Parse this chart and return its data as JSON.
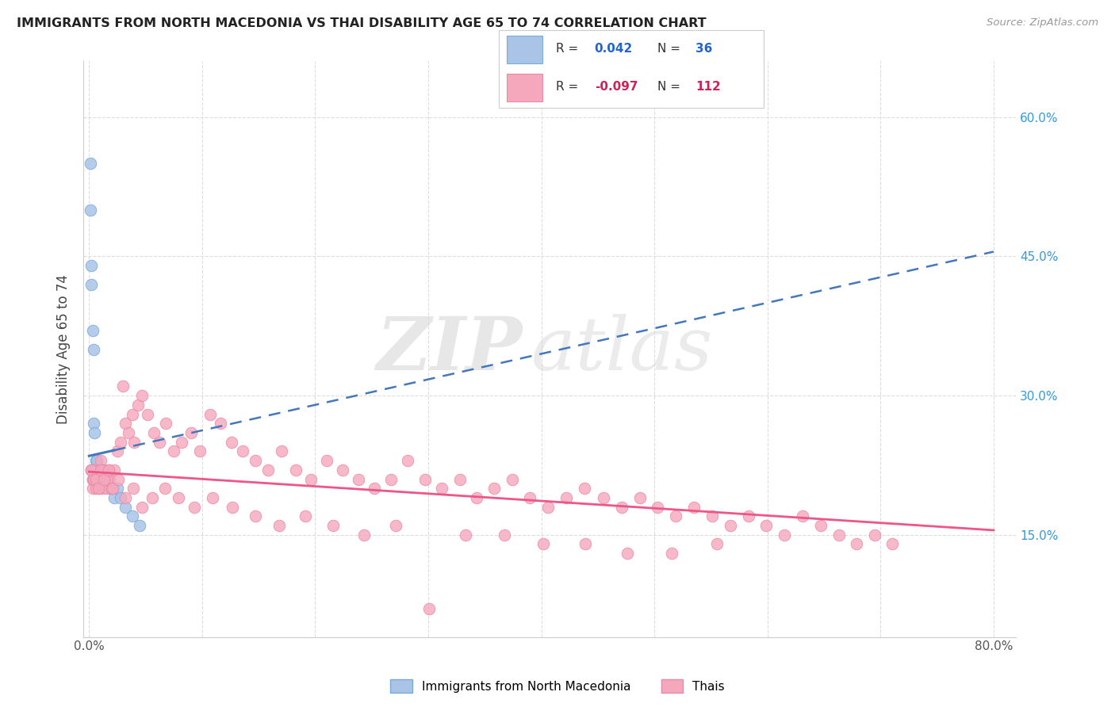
{
  "title": "IMMIGRANTS FROM NORTH MACEDONIA VS THAI DISABILITY AGE 65 TO 74 CORRELATION CHART",
  "source": "Source: ZipAtlas.com",
  "ylabel": "Disability Age 65 to 74",
  "xlim": [
    -0.005,
    0.82
  ],
  "ylim": [
    0.04,
    0.66
  ],
  "xticks": [
    0.0,
    0.1,
    0.2,
    0.3,
    0.4,
    0.5,
    0.6,
    0.7,
    0.8
  ],
  "xticklabels": [
    "0.0%",
    "",
    "",
    "",
    "",
    "",
    "",
    "",
    "80.0%"
  ],
  "yticks_right": [
    0.15,
    0.3,
    0.45,
    0.6
  ],
  "ytick_labels_right": [
    "15.0%",
    "30.0%",
    "45.0%",
    "60.0%"
  ],
  "blue_color": "#aac4e8",
  "pink_color": "#f5a8bc",
  "blue_edge_color": "#7aaad8",
  "pink_edge_color": "#e888aa",
  "blue_line_color": "#4477bb",
  "pink_line_color": "#ee5588",
  "watermark_zip": "ZIP",
  "watermark_atlas": "atlas",
  "background_color": "#ffffff",
  "grid_color": "#dddddd",
  "blue_x": [
    0.001,
    0.001,
    0.002,
    0.002,
    0.002,
    0.003,
    0.003,
    0.003,
    0.004,
    0.004,
    0.004,
    0.005,
    0.005,
    0.005,
    0.006,
    0.006,
    0.007,
    0.007,
    0.008,
    0.008,
    0.009,
    0.009,
    0.01,
    0.011,
    0.012,
    0.013,
    0.015,
    0.016,
    0.018,
    0.02,
    0.022,
    0.025,
    0.028,
    0.032,
    0.038,
    0.045
  ],
  "blue_y": [
    0.55,
    0.5,
    0.44,
    0.42,
    0.22,
    0.37,
    0.22,
    0.21,
    0.35,
    0.27,
    0.22,
    0.26,
    0.22,
    0.21,
    0.23,
    0.21,
    0.23,
    0.21,
    0.22,
    0.21,
    0.22,
    0.21,
    0.22,
    0.21,
    0.22,
    0.21,
    0.21,
    0.21,
    0.2,
    0.2,
    0.19,
    0.2,
    0.19,
    0.18,
    0.17,
    0.16
  ],
  "pink_x": [
    0.002,
    0.003,
    0.003,
    0.004,
    0.005,
    0.006,
    0.007,
    0.008,
    0.009,
    0.01,
    0.011,
    0.012,
    0.013,
    0.014,
    0.015,
    0.016,
    0.017,
    0.018,
    0.02,
    0.022,
    0.025,
    0.028,
    0.03,
    0.032,
    0.035,
    0.038,
    0.04,
    0.043,
    0.047,
    0.052,
    0.057,
    0.062,
    0.068,
    0.075,
    0.082,
    0.09,
    0.098,
    0.107,
    0.116,
    0.126,
    0.136,
    0.147,
    0.158,
    0.17,
    0.183,
    0.196,
    0.21,
    0.224,
    0.238,
    0.252,
    0.267,
    0.282,
    0.297,
    0.312,
    0.328,
    0.343,
    0.358,
    0.374,
    0.39,
    0.406,
    0.422,
    0.438,
    0.455,
    0.471,
    0.487,
    0.503,
    0.519,
    0.535,
    0.551,
    0.567,
    0.583,
    0.599,
    0.615,
    0.631,
    0.647,
    0.663,
    0.679,
    0.695,
    0.71,
    0.002,
    0.004,
    0.006,
    0.008,
    0.01,
    0.013,
    0.017,
    0.021,
    0.026,
    0.032,
    0.039,
    0.047,
    0.056,
    0.067,
    0.079,
    0.093,
    0.109,
    0.127,
    0.147,
    0.168,
    0.191,
    0.216,
    0.243,
    0.271,
    0.301,
    0.333,
    0.367,
    0.402,
    0.439,
    0.476,
    0.515,
    0.555
  ],
  "pink_y": [
    0.22,
    0.2,
    0.21,
    0.21,
    0.22,
    0.2,
    0.21,
    0.21,
    0.2,
    0.23,
    0.21,
    0.2,
    0.22,
    0.21,
    0.2,
    0.21,
    0.22,
    0.21,
    0.2,
    0.22,
    0.24,
    0.25,
    0.31,
    0.27,
    0.26,
    0.28,
    0.25,
    0.29,
    0.3,
    0.28,
    0.26,
    0.25,
    0.27,
    0.24,
    0.25,
    0.26,
    0.24,
    0.28,
    0.27,
    0.25,
    0.24,
    0.23,
    0.22,
    0.24,
    0.22,
    0.21,
    0.23,
    0.22,
    0.21,
    0.2,
    0.21,
    0.23,
    0.21,
    0.2,
    0.21,
    0.19,
    0.2,
    0.21,
    0.19,
    0.18,
    0.19,
    0.2,
    0.19,
    0.18,
    0.19,
    0.18,
    0.17,
    0.18,
    0.17,
    0.16,
    0.17,
    0.16,
    0.15,
    0.17,
    0.16,
    0.15,
    0.14,
    0.15,
    0.14,
    0.22,
    0.21,
    0.21,
    0.2,
    0.22,
    0.21,
    0.22,
    0.2,
    0.21,
    0.19,
    0.2,
    0.18,
    0.19,
    0.2,
    0.19,
    0.18,
    0.19,
    0.18,
    0.17,
    0.16,
    0.17,
    0.16,
    0.15,
    0.16,
    0.07,
    0.15,
    0.15,
    0.14,
    0.14,
    0.13,
    0.13,
    0.14
  ],
  "blue_trend_x": [
    0.0,
    0.8
  ],
  "blue_trend_y": [
    0.235,
    0.455
  ],
  "pink_trend_x": [
    0.0,
    0.8
  ],
  "pink_trend_y": [
    0.218,
    0.155
  ]
}
